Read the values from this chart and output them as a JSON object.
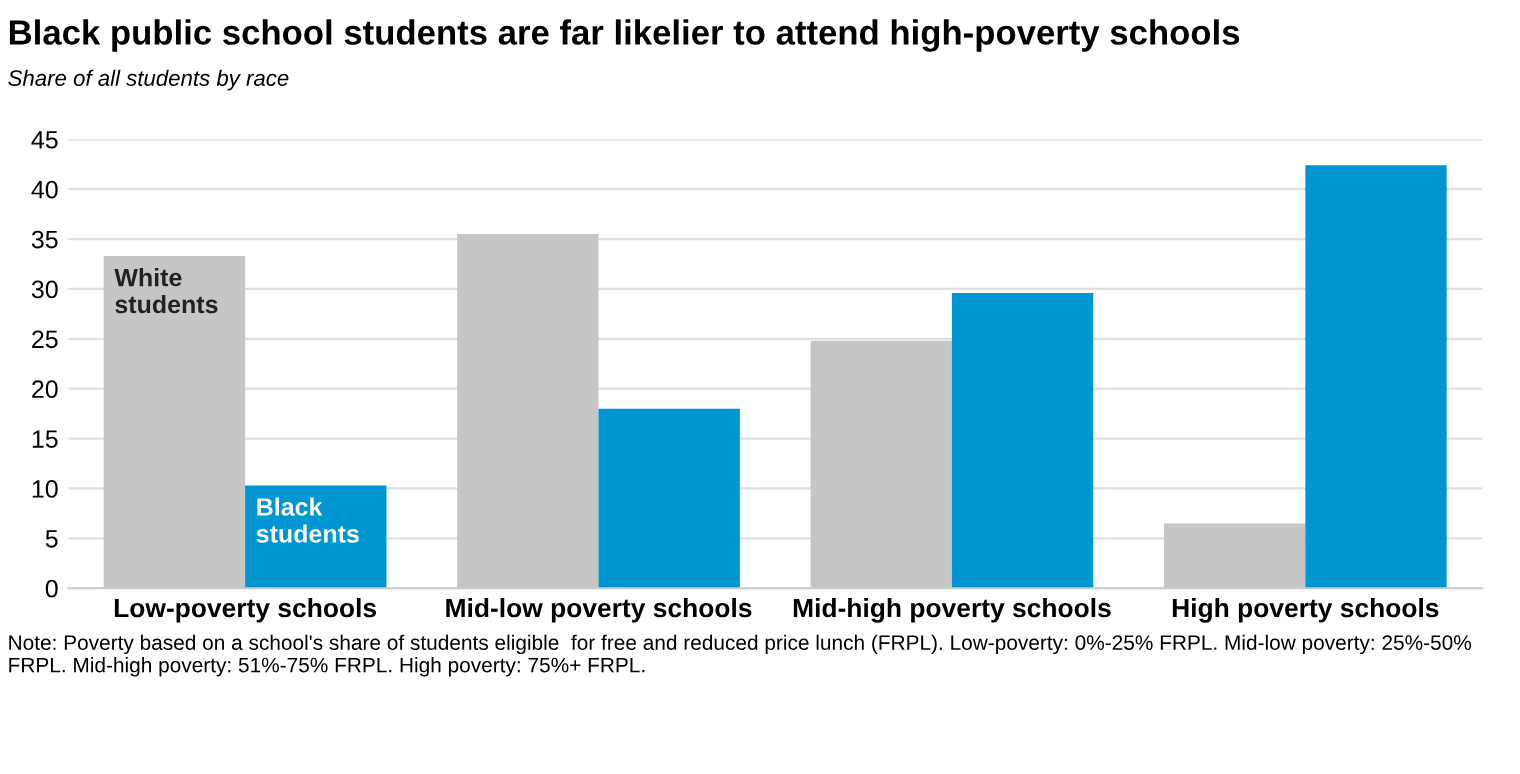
{
  "chart_data": {
    "type": "bar",
    "title": "Black public school students are far likelier to attend high-poverty schools",
    "subtitle": "Share of all students by race",
    "categories": [
      "Low-poverty schools",
      "Mid-low poverty schools",
      "Mid-high poverty schools",
      "High poverty schools"
    ],
    "series": [
      {
        "name": "White students",
        "color": "#c6c6c6",
        "values": [
          33.3,
          35.5,
          24.8,
          6.5
        ]
      },
      {
        "name": "Black students",
        "color": "#0096d2",
        "values": [
          10.3,
          18.0,
          29.6,
          42.4
        ]
      }
    ],
    "ylim": [
      0,
      45
    ],
    "yticks": [
      0,
      5,
      10,
      15,
      20,
      25,
      30,
      35,
      40,
      45
    ],
    "grid": "y",
    "legend": false,
    "annotations": [
      "Note: Poverty based on a school's share of students eligible  for free and reduced price lunch (FRPL). Low-poverty: 0%-25% FRPL. Mid-low poverty: 25%-50% FRPL. Mid-high poverty: 51%-75% FRPL. High poverty: 75%+ FRPL."
    ]
  }
}
